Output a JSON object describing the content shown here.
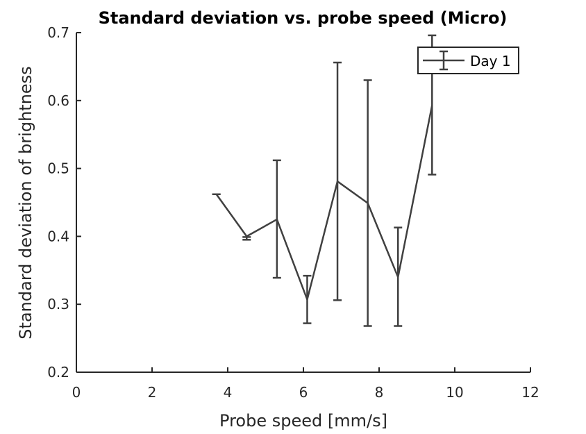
{
  "chart_data": {
    "type": "line",
    "title": "Standard deviation vs. probe speed (Micro)",
    "xlabel": "Probe speed [mm/s]",
    "ylabel": "Standard deviation of brightness",
    "xlim": [
      0,
      12
    ],
    "ylim": [
      0.2,
      0.7
    ],
    "xticks": [
      0,
      2,
      4,
      6,
      8,
      10,
      12
    ],
    "yticks": [
      0.2,
      0.3,
      0.4,
      0.5,
      0.6,
      0.7
    ],
    "xtick_labels": [
      "0",
      "2",
      "4",
      "6",
      "8",
      "10",
      "12"
    ],
    "ytick_labels": [
      "0.2",
      "0.3",
      "0.4",
      "0.5",
      "0.6",
      "0.7"
    ],
    "grid": false,
    "legend_position": "top-right",
    "series": [
      {
        "name": "Day 1",
        "color": "#404040",
        "x": [
          3.7,
          4.5,
          5.3,
          6.1,
          6.9,
          7.7,
          8.5,
          9.4
        ],
        "y": [
          0.462,
          0.4,
          0.425,
          0.307,
          0.481,
          0.449,
          0.34,
          0.593
        ],
        "err_low": [
          0.462,
          0.395,
          0.339,
          0.272,
          0.306,
          0.268,
          0.268,
          0.491
        ],
        "err_high": [
          0.462,
          0.399,
          0.512,
          0.342,
          0.656,
          0.63,
          0.413,
          0.696
        ]
      }
    ]
  }
}
